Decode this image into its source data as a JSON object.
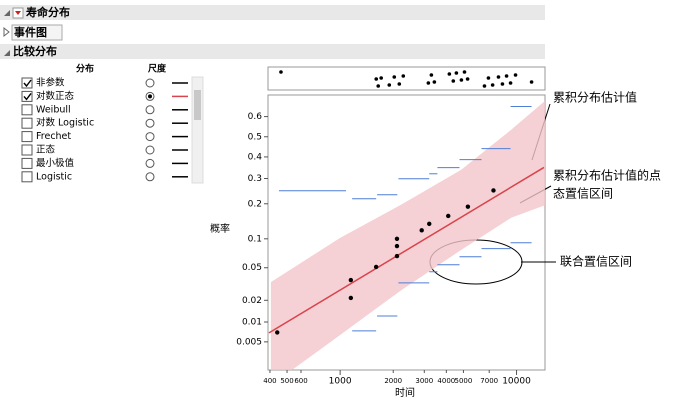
{
  "panel": {
    "title": "寿命分布",
    "sections": [
      "事件图",
      "比较分布"
    ]
  },
  "distribution_table": {
    "headers": [
      "分布",
      "尺度"
    ],
    "rows": [
      {
        "name": "非参数",
        "checked": true,
        "scale_selected": false,
        "line_color": "#000000"
      },
      {
        "name": "对数正态",
        "checked": true,
        "scale_selected": true,
        "line_color": "#d9434b"
      },
      {
        "name": "Weibull",
        "checked": false,
        "scale_selected": false,
        "line_color": "#000000"
      },
      {
        "name": "对数 Logistic",
        "checked": false,
        "scale_selected": false,
        "line_color": "#000000"
      },
      {
        "name": "Frechet",
        "checked": false,
        "scale_selected": false,
        "line_color": "#000000"
      },
      {
        "name": "正态",
        "checked": false,
        "scale_selected": false,
        "line_color": "#000000"
      },
      {
        "name": "最小极值",
        "checked": false,
        "scale_selected": false,
        "line_color": "#000000"
      },
      {
        "name": "Logistic",
        "checked": false,
        "scale_selected": false,
        "line_color": "#000000"
      }
    ]
  },
  "chart_data": {
    "type": "probability_plot",
    "x_label": "时间",
    "y_label": "概率",
    "x_scale": "log",
    "y_scale": "normal-probability",
    "xlim": [
      390,
      14500
    ],
    "ylim": [
      0.0017,
      0.7
    ],
    "xticks": [
      400,
      500,
      600,
      1000,
      2000,
      3000,
      4000,
      5000,
      7000,
      10000
    ],
    "yticks": [
      0.005,
      0.01,
      0.02,
      0.05,
      0.1,
      0.2,
      0.3,
      0.4,
      0.5,
      0.6
    ],
    "points": {
      "color": "#000000",
      "x": [
        440,
        1150,
        1150,
        1600,
        2100,
        2100,
        2100,
        2900,
        3200,
        4100,
        5300,
        7400
      ],
      "y": [
        0.007,
        0.036,
        0.0215,
        0.051,
        0.067,
        0.085,
        0.1,
        0.12,
        0.137,
        0.16,
        0.19,
        0.25
      ]
    },
    "rug": {
      "x": [
        462,
        1602,
        1644,
        1709,
        1899,
        2027,
        2164,
        2280,
        3163,
        3290,
        3421,
        4160,
        4380,
        4560,
        4870,
        5070,
        5280,
        6580,
        6930,
        7320,
        7900,
        8320,
        8780,
        9250,
        9870,
        12170
      ]
    },
    "fit": {
      "color": "#d9434b",
      "x": [
        395,
        14300
      ],
      "y": [
        0.0069,
        0.35
      ]
    },
    "pointwise_band": {
      "color": "#f2c4c9",
      "upper": {
        "x": [
          405,
          1000,
          2220,
          4870,
          9350,
          14800
        ],
        "y": [
          0.034,
          0.102,
          0.197,
          0.34,
          0.536,
          0.68
        ]
      },
      "lower": {
        "x": [
          405,
          1000,
          2220,
          4870,
          9350,
          14800
        ],
        "y": [
          0.0009,
          0.0064,
          0.027,
          0.078,
          0.155,
          0.197
        ]
      }
    },
    "simultaneous_band": {
      "color": "#4f7fd6",
      "upper": {
        "x1": [
          450,
          1170,
          1620,
          2140,
          3200,
          3560,
          4750,
          6330,
          9250
        ],
        "x2": [
          1080,
          1600,
          2110,
          3200,
          3560,
          4750,
          6330,
          9250,
          12170
        ],
        "y": [
          0.249,
          0.218,
          0.233,
          0.299,
          0.321,
          0.349,
          0.387,
          0.441,
          0.648
        ]
      },
      "lower": {
        "x1": [
          1170,
          1620,
          2140,
          3200,
          3560,
          4750,
          6330,
          9250
        ],
        "x2": [
          1600,
          2110,
          3200,
          3560,
          4750,
          6330,
          9250,
          12170
        ],
        "y": [
          0.0074,
          0.0122,
          0.0333,
          0.045,
          0.054,
          0.066,
          0.08,
          0.0915
        ]
      }
    },
    "annotations": [
      "累积分布估计值",
      "累积分布估计值的点",
      "态置信区间",
      "联合置信区间"
    ]
  }
}
